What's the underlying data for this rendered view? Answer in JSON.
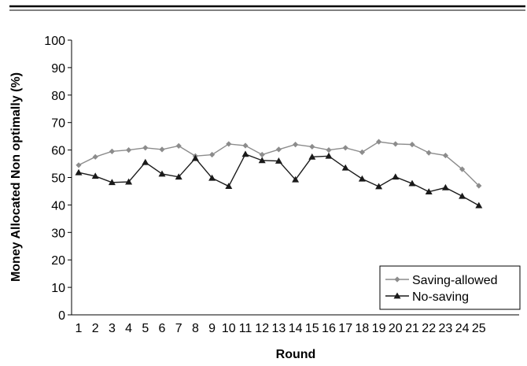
{
  "chart_data": {
    "type": "line",
    "title": "",
    "xlabel": "Round",
    "ylabel": "Money Allocated Non  optimally (%)",
    "categories": [
      "1",
      "2",
      "3",
      "4",
      "5",
      "6",
      "7",
      "8",
      "9",
      "10",
      "11",
      "12",
      "13",
      "14",
      "15",
      "16",
      "17",
      "18",
      "19",
      "20",
      "21",
      "22",
      "23",
      "24",
      "25"
    ],
    "ylim": [
      0,
      100
    ],
    "yticks": [
      "0",
      "10",
      "20",
      "30",
      "40",
      "50",
      "60",
      "70",
      "80",
      "90",
      "100"
    ],
    "grid": false,
    "legend_position": "bottom-right",
    "series": [
      {
        "name": "Saving-allowed",
        "marker": "diamond",
        "color": "#8c8c8c",
        "values": [
          54.5,
          57.5,
          59.5,
          60,
          60.8,
          60.2,
          61.5,
          57.8,
          58.3,
          62.2,
          61.6,
          58.3,
          60.2,
          62,
          61.2,
          60,
          60.8,
          59.2,
          63,
          62.2,
          62,
          59,
          58,
          53,
          47
        ]
      },
      {
        "name": "No-saving",
        "marker": "triangle",
        "color": "#1a1a1a",
        "values": [
          51.8,
          50.5,
          48.2,
          48.4,
          55.5,
          51.3,
          50.2,
          57,
          49.8,
          46.8,
          58.5,
          56.2,
          56,
          49.2,
          57.5,
          57.8,
          53.5,
          49.5,
          46.7,
          50.2,
          47.8,
          44.8,
          46.3,
          43.2,
          39.8
        ]
      }
    ]
  }
}
